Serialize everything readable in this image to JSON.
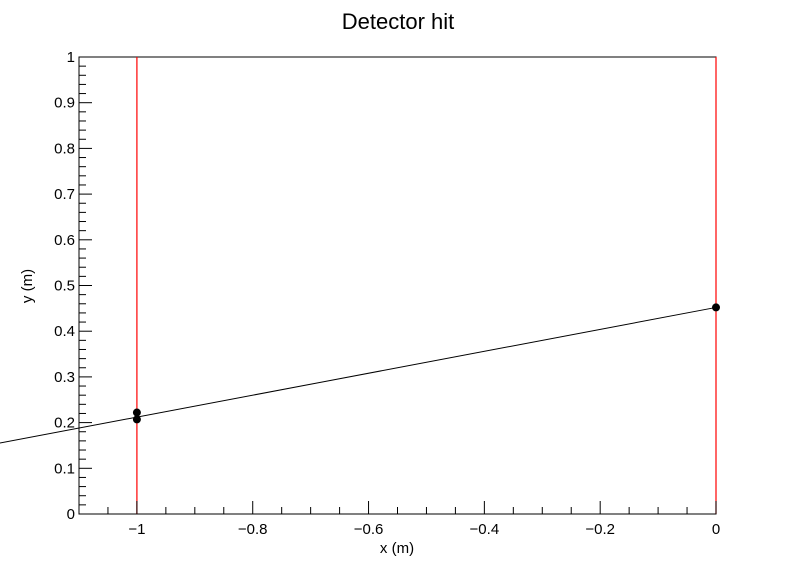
{
  "chart_data": {
    "type": "scatter",
    "title": "Detector hit",
    "xlabel": "x (m)",
    "ylabel": "y (m)",
    "xlim": [
      -1.1,
      0.0
    ],
    "ylim": [
      0.0,
      1.0
    ],
    "x_ticks": [
      "−1",
      "−0.8",
      "−0.6",
      "−0.4",
      "−0.2",
      "0"
    ],
    "y_ticks": [
      "0",
      "0.1",
      "0.2",
      "0.3",
      "0.4",
      "0.5",
      "0.6",
      "0.7",
      "0.8",
      "0.9",
      "1"
    ],
    "x_tick_values": [
      -1.0,
      -0.8,
      -0.6,
      -0.4,
      -0.2,
      0.0
    ],
    "y_tick_values": [
      0,
      0.1,
      0.2,
      0.3,
      0.4,
      0.5,
      0.6,
      0.7,
      0.8,
      0.9,
      1.0
    ],
    "points": [
      {
        "x": -1.0,
        "y": 0.222
      },
      {
        "x": -1.0,
        "y": 0.207
      },
      {
        "x": 0.0,
        "y": 0.452
      }
    ],
    "fit_line": {
      "x_start": -1.1,
      "y_start": 0.188,
      "x_end": 0.0,
      "y_end": 0.452
    },
    "detector_planes_x": [
      -1.0,
      0.0
    ],
    "grid": false,
    "colors": {
      "points": "#000000",
      "fit_line": "#000000",
      "detector_planes": "#ff0000",
      "axes": "#000000"
    }
  }
}
